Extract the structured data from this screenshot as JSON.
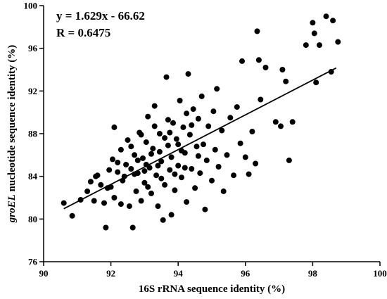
{
  "chart_data": {
    "type": "scatter",
    "title": "",
    "xlabel": "16S rRNA sequence identity (%)",
    "ylabel_italic": "groEL",
    "ylabel_rest": " nucleotide sequence identity (%)",
    "xlim": [
      90,
      100
    ],
    "ylim": [
      76,
      100
    ],
    "xticks": [
      90,
      92,
      94,
      96,
      98,
      100
    ],
    "yticks": [
      76,
      80,
      84,
      88,
      92,
      96,
      100
    ],
    "grid": false,
    "annotations": {
      "equation": "y = 1.629x - 66.62",
      "r_value": "R =  0.6475"
    },
    "trendline": {
      "slope": 1.629,
      "intercept": -66.62,
      "x_range": [
        90.6,
        98.7
      ]
    },
    "series": [
      {
        "points": [
          [
            90.6,
            81.5
          ],
          [
            90.85,
            80.3
          ],
          [
            91.1,
            81.8
          ],
          [
            91.3,
            82.6
          ],
          [
            91.4,
            83.5
          ],
          [
            91.5,
            81.7
          ],
          [
            91.55,
            84.0
          ],
          [
            91.6,
            84.1
          ],
          [
            91.7,
            83.2
          ],
          [
            91.8,
            81.5
          ],
          [
            91.85,
            79.2
          ],
          [
            91.9,
            82.9
          ],
          [
            91.95,
            84.6
          ],
          [
            92.0,
            83.0
          ],
          [
            92.05,
            85.6
          ],
          [
            92.1,
            88.6
          ],
          [
            92.1,
            82.0
          ],
          [
            92.2,
            84.4
          ],
          [
            92.3,
            86.5
          ],
          [
            92.3,
            81.4
          ],
          [
            92.35,
            83.6
          ],
          [
            92.45,
            85.1
          ],
          [
            92.5,
            87.4
          ],
          [
            92.55,
            81.2
          ],
          [
            92.6,
            84.7
          ],
          [
            92.65,
            79.2
          ],
          [
            92.7,
            86.0
          ],
          [
            92.75,
            82.6
          ],
          [
            92.8,
            84.3
          ],
          [
            92.85,
            88.1
          ],
          [
            92.9,
            81.7
          ],
          [
            92.95,
            85.7
          ],
          [
            93.0,
            83.4
          ],
          [
            93.05,
            87.2
          ],
          [
            93.1,
            89.6
          ],
          [
            93.15,
            84.8
          ],
          [
            93.2,
            82.4
          ],
          [
            93.25,
            86.6
          ],
          [
            93.3,
            90.6
          ],
          [
            93.35,
            84.1
          ],
          [
            93.4,
            81.2
          ],
          [
            93.45,
            88.0
          ],
          [
            93.5,
            85.4
          ],
          [
            93.55,
            79.9
          ],
          [
            93.6,
            83.2
          ],
          [
            93.65,
            93.3
          ],
          [
            93.7,
            86.9
          ],
          [
            93.75,
            84.6
          ],
          [
            93.8,
            80.4
          ],
          [
            93.85,
            89.0
          ],
          [
            93.9,
            82.7
          ],
          [
            93.95,
            87.5
          ],
          [
            94.0,
            85.0
          ],
          [
            94.05,
            91.1
          ],
          [
            94.1,
            83.9
          ],
          [
            94.15,
            88.6
          ],
          [
            94.2,
            86.2
          ],
          [
            94.25,
            81.6
          ],
          [
            94.3,
            93.6
          ],
          [
            94.35,
            87.9
          ],
          [
            94.4,
            84.7
          ],
          [
            94.45,
            90.3
          ],
          [
            94.5,
            82.9
          ],
          [
            94.55,
            86.8
          ],
          [
            94.6,
            89.4
          ],
          [
            94.65,
            84.3
          ],
          [
            94.7,
            91.5
          ],
          [
            94.75,
            87.0
          ],
          [
            94.8,
            80.9
          ],
          [
            94.85,
            85.5
          ],
          [
            94.9,
            88.7
          ],
          [
            95.0,
            83.6
          ],
          [
            95.05,
            90.1
          ],
          [
            95.1,
            86.5
          ],
          [
            95.15,
            92.2
          ],
          [
            95.2,
            84.9
          ],
          [
            95.3,
            88.3
          ],
          [
            95.35,
            82.6
          ],
          [
            95.45,
            86.0
          ],
          [
            95.55,
            89.5
          ],
          [
            95.65,
            84.1
          ],
          [
            95.75,
            90.5
          ],
          [
            95.85,
            87.1
          ],
          [
            95.9,
            94.8
          ],
          [
            96.0,
            85.8
          ],
          [
            96.1,
            84.2
          ],
          [
            96.2,
            88.2
          ],
          [
            96.3,
            85.2
          ],
          [
            96.35,
            97.6
          ],
          [
            96.4,
            94.9
          ],
          [
            96.45,
            91.2
          ],
          [
            96.6,
            94.2
          ],
          [
            96.9,
            89.1
          ],
          [
            97.05,
            88.7
          ],
          [
            97.1,
            94.0
          ],
          [
            97.2,
            92.9
          ],
          [
            97.3,
            85.5
          ],
          [
            97.4,
            89.1
          ],
          [
            97.8,
            96.3
          ],
          [
            98.0,
            98.4
          ],
          [
            98.05,
            97.4
          ],
          [
            98.1,
            92.8
          ],
          [
            98.2,
            96.3
          ],
          [
            98.4,
            99.0
          ],
          [
            98.55,
            93.8
          ],
          [
            98.6,
            98.6
          ],
          [
            98.75,
            96.6
          ],
          [
            92.2,
            85.3
          ],
          [
            92.4,
            84.0
          ],
          [
            92.6,
            86.8
          ],
          [
            92.8,
            85.5
          ],
          [
            93.0,
            84.5
          ],
          [
            93.2,
            86.1
          ],
          [
            93.4,
            85.0
          ],
          [
            93.6,
            87.6
          ],
          [
            93.8,
            85.8
          ],
          [
            94.0,
            87.0
          ],
          [
            94.2,
            84.8
          ],
          [
            94.4,
            88.8
          ],
          [
            94.6,
            85.9
          ],
          [
            93.1,
            83.0
          ],
          [
            93.3,
            88.7
          ],
          [
            93.5,
            83.8
          ],
          [
            93.7,
            89.3
          ],
          [
            93.9,
            84.2
          ],
          [
            94.1,
            86.4
          ],
          [
            92.9,
            87.9
          ],
          [
            92.7,
            84.2
          ],
          [
            93.45,
            86.3
          ],
          [
            93.75,
            88.1
          ],
          [
            94.25,
            89.9
          ],
          [
            93.05,
            85.1
          ]
        ]
      }
    ]
  }
}
